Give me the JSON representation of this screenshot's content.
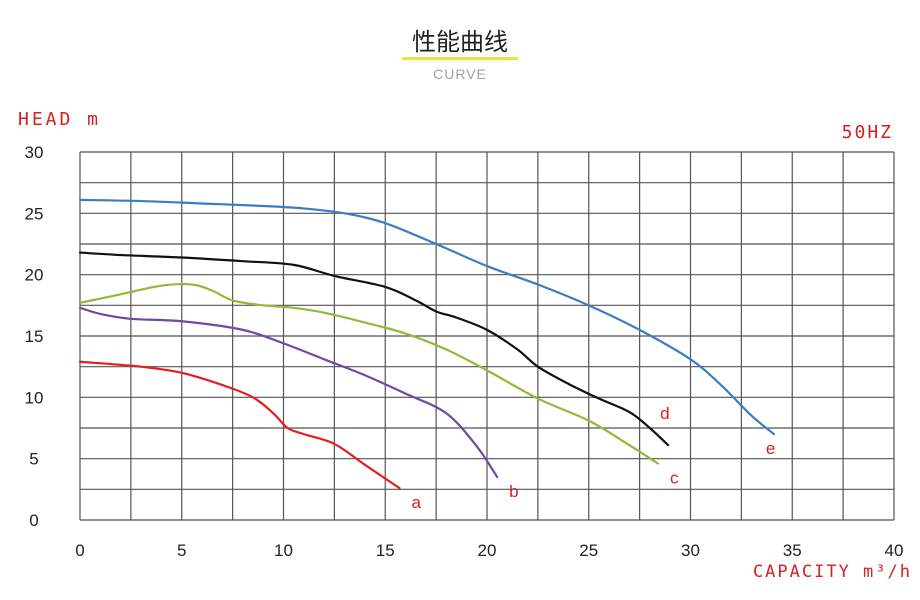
{
  "header": {
    "title": "性能曲线",
    "subtitle": "CURVE"
  },
  "chart_data": {
    "type": "line",
    "ylabel": "HEAD m",
    "xlabel": "CAPACITY m³/h",
    "frequency": "50HZ",
    "xlim": [
      0,
      40
    ],
    "ylim": [
      0,
      30
    ],
    "x_ticks": [
      0,
      5,
      10,
      15,
      20,
      25,
      30,
      35,
      40
    ],
    "y_ticks": [
      0,
      5,
      10,
      15,
      20,
      25,
      30
    ],
    "grid": true,
    "series": [
      {
        "name": "a",
        "color": "#e51d1d",
        "x": [
          0,
          3,
          5,
          7,
          8.5,
          9.5,
          10.2,
          11,
          12.5,
          14,
          15.7
        ],
        "y": [
          12.9,
          12.5,
          12,
          11,
          10,
          8.7,
          7.5,
          7,
          6.2,
          4.5,
          2.6
        ]
      },
      {
        "name": "b",
        "color": "#6b4ba3",
        "x": [
          0,
          1,
          2.5,
          5,
          8,
          10,
          12,
          14,
          16,
          18,
          19.5,
          20.5
        ],
        "y": [
          17.3,
          16.8,
          16.4,
          16.2,
          15.5,
          14.4,
          13.1,
          11.8,
          10.3,
          8.7,
          6,
          3.5
        ]
      },
      {
        "name": "c",
        "color": "#8dbb3a",
        "x": [
          0,
          2,
          4,
          5.5,
          6.5,
          7.5,
          9,
          10.5,
          12,
          14,
          16,
          18,
          20,
          22.5,
          25,
          27,
          28.4
        ],
        "y": [
          17.7,
          18.4,
          19.1,
          19.2,
          18.7,
          17.9,
          17.5,
          17.3,
          16.9,
          16.1,
          15.2,
          13.9,
          12.2,
          9.9,
          8.1,
          6.1,
          4.6
        ]
      },
      {
        "name": "d",
        "color": "#111111",
        "x": [
          0,
          2,
          5,
          8,
          10.5,
          12.5,
          15,
          16.5,
          17.5,
          18.5,
          20,
          21.5,
          22.5,
          24,
          25.5,
          27,
          28,
          28.9
        ],
        "y": [
          21.8,
          21.6,
          21.4,
          21.1,
          20.8,
          19.9,
          19,
          17.9,
          17,
          16.5,
          15.5,
          13.9,
          12.5,
          11.1,
          9.9,
          8.8,
          7.5,
          6.1
        ]
      },
      {
        "name": "e",
        "color": "#3a7ec2",
        "x": [
          0,
          3,
          6,
          9,
          11,
          13,
          15,
          17.5,
          20,
          22.5,
          25,
          27.5,
          30,
          31.5,
          33,
          34.1
        ],
        "y": [
          26.1,
          26,
          25.8,
          25.6,
          25.4,
          25,
          24.2,
          22.5,
          20.7,
          19.2,
          17.5,
          15.5,
          13.1,
          11,
          8.5,
          7
        ]
      }
    ]
  }
}
